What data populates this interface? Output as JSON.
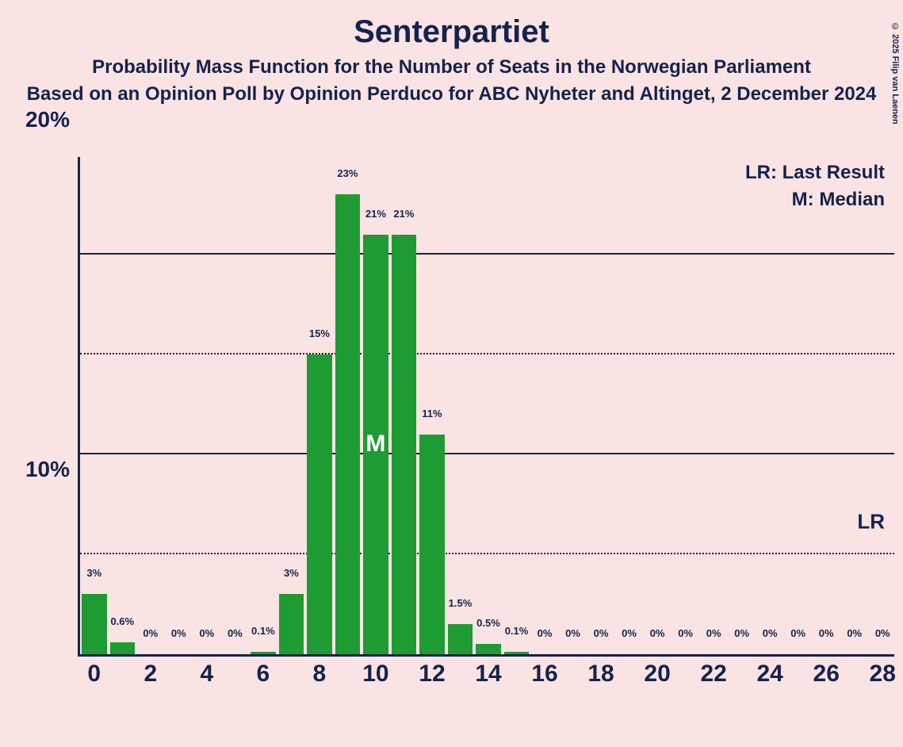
{
  "title": "Senterpartiet",
  "subtitle1": "Probability Mass Function for the Number of Seats in the Norwegian Parliament",
  "subtitle2": "Based on an Opinion Poll by Opinion Perduco for ABC Nyheter and Altinget, 2 December 2024",
  "legend_lr": "LR: Last Result",
  "legend_m": "M: Median",
  "lr_label": "LR",
  "median_label": "M",
  "copyright": "© 2025 Filip van Laenen",
  "chart": {
    "type": "bar",
    "bar_color": "#1e9b33",
    "axis_color": "#14234b",
    "background_color": "#fae3e3",
    "text_color": "#14234b",
    "median_text_color": "#ffffff",
    "ylim": [
      0,
      25
    ],
    "y_ticks_major": [
      10,
      20
    ],
    "y_ticks_minor": [
      5,
      15
    ],
    "y_tick_labels": {
      "10": "10%",
      "20": "20%"
    },
    "x_range": [
      0,
      28
    ],
    "x_ticks": [
      0,
      2,
      4,
      6,
      8,
      10,
      12,
      14,
      16,
      18,
      20,
      22,
      24,
      26,
      28
    ],
    "median_seat": 10,
    "lr_seat": 28,
    "bars": [
      {
        "seat": 0,
        "value": 3,
        "label": "3%"
      },
      {
        "seat": 1,
        "value": 0.6,
        "label": "0.6%"
      },
      {
        "seat": 2,
        "value": 0,
        "label": "0%"
      },
      {
        "seat": 3,
        "value": 0,
        "label": "0%"
      },
      {
        "seat": 4,
        "value": 0,
        "label": "0%"
      },
      {
        "seat": 5,
        "value": 0,
        "label": "0%"
      },
      {
        "seat": 6,
        "value": 0.1,
        "label": "0.1%"
      },
      {
        "seat": 7,
        "value": 3,
        "label": "3%"
      },
      {
        "seat": 8,
        "value": 15,
        "label": "15%"
      },
      {
        "seat": 9,
        "value": 23,
        "label": "23%"
      },
      {
        "seat": 10,
        "value": 21,
        "label": "21%"
      },
      {
        "seat": 11,
        "value": 21,
        "label": "21%"
      },
      {
        "seat": 12,
        "value": 11,
        "label": "11%"
      },
      {
        "seat": 13,
        "value": 1.5,
        "label": "1.5%"
      },
      {
        "seat": 14,
        "value": 0.5,
        "label": "0.5%"
      },
      {
        "seat": 15,
        "value": 0.1,
        "label": "0.1%"
      },
      {
        "seat": 16,
        "value": 0,
        "label": "0%"
      },
      {
        "seat": 17,
        "value": 0,
        "label": "0%"
      },
      {
        "seat": 18,
        "value": 0,
        "label": "0%"
      },
      {
        "seat": 19,
        "value": 0,
        "label": "0%"
      },
      {
        "seat": 20,
        "value": 0,
        "label": "0%"
      },
      {
        "seat": 21,
        "value": 0,
        "label": "0%"
      },
      {
        "seat": 22,
        "value": 0,
        "label": "0%"
      },
      {
        "seat": 23,
        "value": 0,
        "label": "0%"
      },
      {
        "seat": 24,
        "value": 0,
        "label": "0%"
      },
      {
        "seat": 25,
        "value": 0,
        "label": "0%"
      },
      {
        "seat": 26,
        "value": 0,
        "label": "0%"
      },
      {
        "seat": 27,
        "value": 0,
        "label": "0%"
      },
      {
        "seat": 28,
        "value": 0,
        "label": "0%"
      }
    ],
    "title_fontsize": 40,
    "subtitle_fontsize": 24,
    "axis_label_fontsize": 30,
    "bar_label_fontsize": 13
  }
}
